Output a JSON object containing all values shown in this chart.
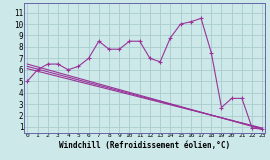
{
  "xlabel": "Windchill (Refroidissement éolien,°C)",
  "bg_color": "#cce8e8",
  "grid_color": "#aacccc",
  "line_color": "#993399",
  "spine_color": "#6666aa",
  "x_ticks": [
    0,
    1,
    2,
    3,
    4,
    5,
    6,
    7,
    8,
    9,
    10,
    11,
    12,
    13,
    14,
    15,
    16,
    17,
    18,
    19,
    20,
    21,
    22,
    23
  ],
  "y_ticks": [
    1,
    2,
    3,
    4,
    5,
    6,
    7,
    8,
    9,
    10,
    11
  ],
  "xlim": [
    -0.3,
    23.3
  ],
  "ylim": [
    0.5,
    11.8
  ],
  "main_line": {
    "x": [
      0,
      1,
      2,
      3,
      4,
      5,
      6,
      7,
      8,
      9,
      10,
      11,
      12,
      13,
      14,
      15,
      16,
      17,
      18,
      19,
      20,
      21,
      22,
      23
    ],
    "y": [
      5.0,
      6.0,
      6.5,
      6.5,
      6.0,
      6.3,
      7.0,
      8.5,
      7.8,
      7.8,
      8.5,
      8.5,
      7.0,
      6.7,
      8.8,
      10.0,
      10.2,
      10.5,
      7.5,
      2.7,
      3.5,
      3.5,
      0.9,
      0.8
    ]
  },
  "trend_lines": [
    {
      "x": [
        0,
        23
      ],
      "y": [
        6.5,
        0.8
      ]
    },
    {
      "x": [
        0,
        23
      ],
      "y": [
        6.3,
        0.85
      ]
    },
    {
      "x": [
        0,
        23
      ],
      "y": [
        6.1,
        0.9
      ]
    }
  ]
}
